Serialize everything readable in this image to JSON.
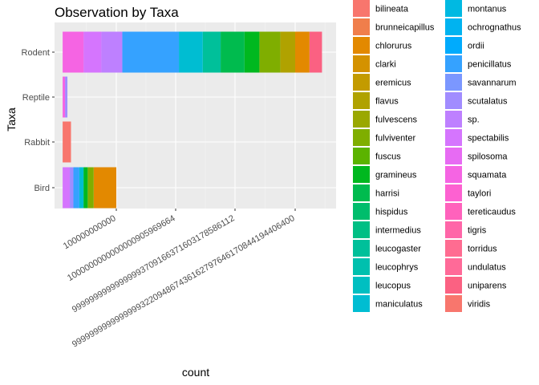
{
  "chart_data": {
    "type": "bar",
    "orientation": "horizontal",
    "stacked": true,
    "title": "Observation by Taxa",
    "xlabel": "count",
    "ylabel": "Taxa",
    "categories": [
      "Rodent",
      "Reptile",
      "Rabbit",
      "Bird"
    ],
    "x_tick_labels": [
      "100000000000",
      "1000000000000000905969664",
      "9999999999999999370916637160317858611​2",
      "99999999999999993220948674361627976461708441944064​00"
    ],
    "grid": true,
    "legend_position": "right",
    "legend": [
      {
        "label": "bilineata",
        "color": "#F8766D"
      },
      {
        "label": "brunneicapillus",
        "color": "#F07E4B"
      },
      {
        "label": "chlorurus",
        "color": "#E38900"
      },
      {
        "label": "clarki",
        "color": "#D49200"
      },
      {
        "label": "eremicus",
        "color": "#C39B00"
      },
      {
        "label": "flavus",
        "color": "#B0A200"
      },
      {
        "label": "fulvescens",
        "color": "#9AA800"
      },
      {
        "label": "fulviventer",
        "color": "#7FAE00"
      },
      {
        "label": "fuscus",
        "color": "#5BB300"
      },
      {
        "label": "gramineus",
        "color": "#00B81F"
      },
      {
        "label": "harrisi",
        "color": "#00BB4E"
      },
      {
        "label": "hispidus",
        "color": "#00BD6C"
      },
      {
        "label": "intermedius",
        "color": "#00BF84"
      },
      {
        "label": "leucogaster",
        "color": "#00C09A"
      },
      {
        "label": "leucophrys",
        "color": "#00C0AE"
      },
      {
        "label": "leucopus",
        "color": "#00BFC1"
      },
      {
        "label": "maniculatus",
        "color": "#00BDD2"
      },
      {
        "label": "montanus",
        "color": "#00B9E2"
      },
      {
        "label": "ochrognathus",
        "color": "#00B3F0"
      },
      {
        "label": "ordii",
        "color": "#00ABFD"
      },
      {
        "label": "penicillatus",
        "color": "#35A2FF"
      },
      {
        "label": "savannarum",
        "color": "#7B97FF"
      },
      {
        "label": "scutalatus",
        "color": "#A18CFF"
      },
      {
        "label": "sp.",
        "color": "#BE80FF"
      },
      {
        "label": "spectabilis",
        "color": "#D575FE"
      },
      {
        "label": "spilosoma",
        "color": "#E76BF3"
      },
      {
        "label": "squamata",
        "color": "#F564E3"
      },
      {
        "label": "taylori",
        "color": "#FD61D1"
      },
      {
        "label": "tereticaudus",
        "color": "#FF62BC"
      },
      {
        "label": "tigris",
        "color": "#FF66A8"
      },
      {
        "label": "torridus",
        "color": "#FF6C91"
      },
      {
        "label": "undulatus",
        "color": "#FF6A98"
      },
      {
        "label": "uniparens",
        "color": "#FB6182"
      },
      {
        "label": "viridis",
        "color": "#F8766D"
      }
    ],
    "note_values": "x axis is a reversed log-like scale; bar extents estimated in tick units where tick index 0..3 map to printed tick labels",
    "x_range_ticks": [
      -0.9,
      3.45
    ],
    "series": [
      {
        "category": "Rodent",
        "segments": [
          {
            "from": 3.45,
            "to": 3.24,
            "color": "#FB6182"
          },
          {
            "from": 3.24,
            "to": 3.0,
            "color": "#E38900"
          },
          {
            "from": 3.0,
            "to": 2.75,
            "color": "#B0A200"
          },
          {
            "from": 2.75,
            "to": 2.4,
            "color": "#7FAE00"
          },
          {
            "from": 2.4,
            "to": 2.15,
            "color": "#00B81F"
          },
          {
            "from": 2.15,
            "to": 1.75,
            "color": "#00BB4E"
          },
          {
            "from": 1.75,
            "to": 1.45,
            "color": "#00C09A"
          },
          {
            "from": 1.45,
            "to": 1.05,
            "color": "#00BDD2"
          },
          {
            "from": 1.05,
            "to": 0.1,
            "color": "#35A2FF"
          },
          {
            "from": 0.1,
            "to": -0.25,
            "color": "#BE80FF"
          },
          {
            "from": -0.25,
            "to": -0.55,
            "color": "#D575FE"
          },
          {
            "from": -0.55,
            "to": -0.9,
            "color": "#F564E3"
          }
        ]
      },
      {
        "category": "Reptile",
        "segments": [
          {
            "from": -0.82,
            "to": -0.86,
            "color": "#A18CFF"
          },
          {
            "from": -0.86,
            "to": -0.9,
            "color": "#F564E3"
          }
        ]
      },
      {
        "category": "Rabbit",
        "segments": [
          {
            "from": -0.76,
            "to": -0.9,
            "color": "#F8766D"
          }
        ]
      },
      {
        "category": "Bird",
        "segments": [
          {
            "from": 0.0,
            "to": -0.38,
            "color": "#E38900"
          },
          {
            "from": -0.38,
            "to": -0.48,
            "color": "#7FAE00"
          },
          {
            "from": -0.48,
            "to": -0.55,
            "color": "#00B81F"
          },
          {
            "from": -0.55,
            "to": -0.62,
            "color": "#00BDD2"
          },
          {
            "from": -0.62,
            "to": -0.72,
            "color": "#35A2FF"
          },
          {
            "from": -0.72,
            "to": -0.78,
            "color": "#A18CFF"
          },
          {
            "from": -0.78,
            "to": -0.9,
            "color": "#D575FE"
          }
        ]
      }
    ]
  }
}
